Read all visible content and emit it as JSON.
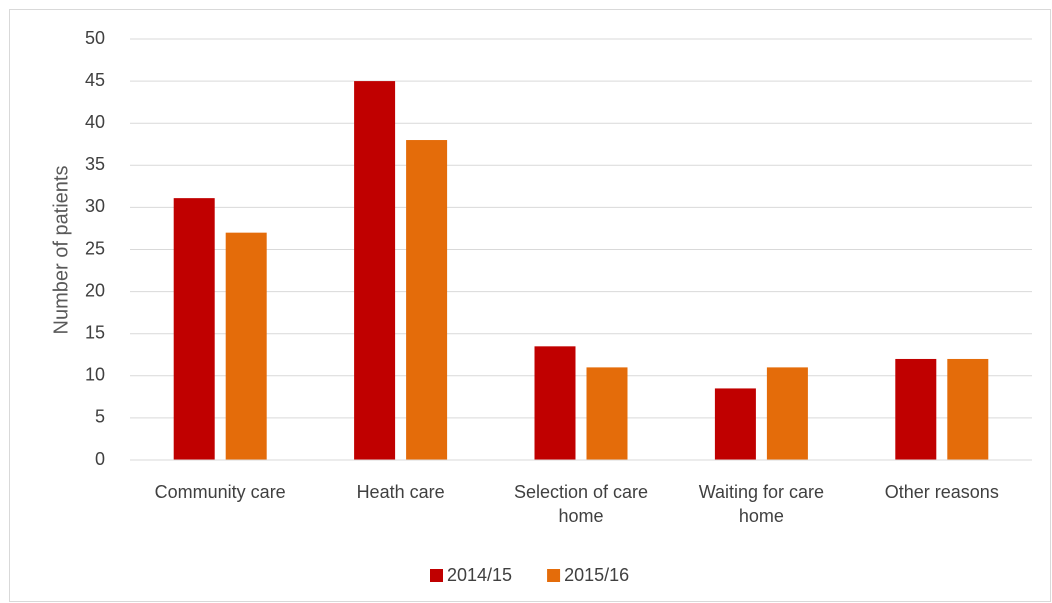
{
  "chart_data": {
    "type": "bar",
    "y_label": "Number of patients",
    "categories": [
      "Community care",
      "Heath care",
      "Selection of care home",
      "Waiting for care home",
      "Other reasons"
    ],
    "series": [
      {
        "name": "2014/15",
        "color": "#c00000",
        "values": [
          31.1,
          45,
          13.5,
          8.5,
          12
        ]
      },
      {
        "name": "2015/16",
        "color": "#e46c0a",
        "values": [
          27,
          38,
          11,
          11,
          12
        ]
      }
    ],
    "ylim": [
      0,
      50
    ],
    "yticks": [
      0,
      5,
      10,
      15,
      20,
      25,
      30,
      35,
      40,
      45,
      50
    ],
    "grid": true,
    "legend": "bottom"
  }
}
